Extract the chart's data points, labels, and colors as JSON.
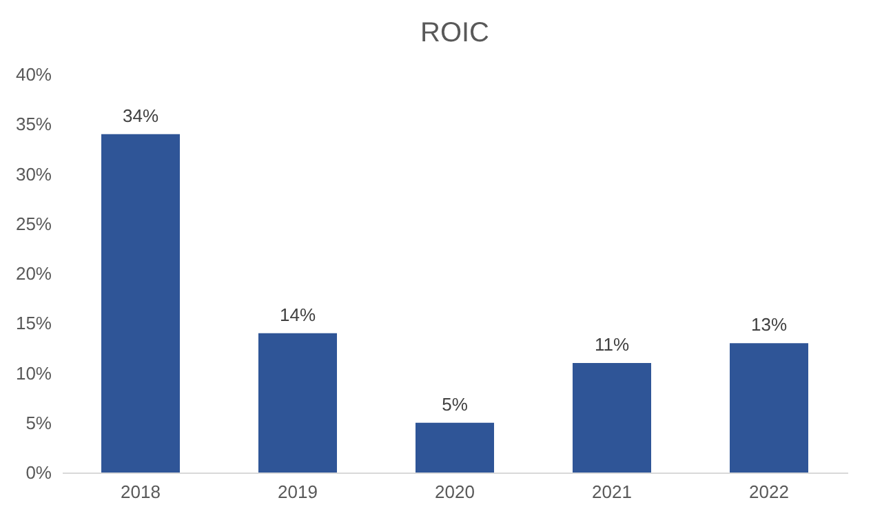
{
  "chart_data": {
    "type": "bar",
    "title": "ROIC",
    "categories": [
      "2018",
      "2019",
      "2020",
      "2021",
      "2022"
    ],
    "values": [
      34,
      14,
      5,
      11,
      13
    ],
    "value_labels": [
      "34%",
      "14%",
      "5%",
      "11%",
      "13%"
    ],
    "color": "#2f5597",
    "ylim": [
      0,
      40
    ],
    "yticks": [
      {
        "value": 0,
        "label": "0%"
      },
      {
        "value": 5,
        "label": "5%"
      },
      {
        "value": 10,
        "label": "10%"
      },
      {
        "value": 15,
        "label": "15%"
      },
      {
        "value": 20,
        "label": "20%"
      },
      {
        "value": 25,
        "label": "25%"
      },
      {
        "value": 30,
        "label": "30%"
      },
      {
        "value": 35,
        "label": "35%"
      },
      {
        "value": 40,
        "label": "40%"
      }
    ],
    "grid": false
  }
}
